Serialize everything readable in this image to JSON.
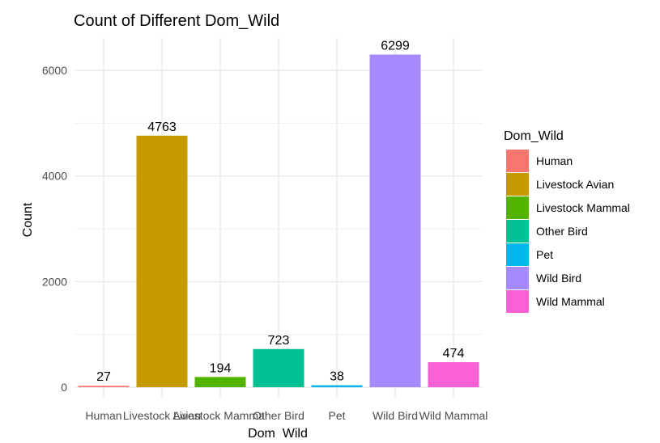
{
  "chart_data": {
    "type": "bar",
    "title": "Count of Different Dom_Wild",
    "xlabel": "Dom_Wild",
    "ylabel": "Count",
    "categories": [
      "Human",
      "Livestock Avian",
      "Livestock Mammal",
      "Other Bird",
      "Pet",
      "Wild Bird",
      "Wild Mammal"
    ],
    "values": [
      27,
      4763,
      194,
      723,
      38,
      6299,
      474
    ],
    "colors": [
      "#F8766D",
      "#C49A00",
      "#53B400",
      "#00C094",
      "#00B6EB",
      "#A58AFF",
      "#FB61D7"
    ],
    "yticks": [
      0,
      2000,
      4000,
      6000
    ],
    "ylim": [
      0,
      6600
    ],
    "grid": true,
    "legend": {
      "title": "Dom_Wild",
      "position": "right"
    }
  }
}
